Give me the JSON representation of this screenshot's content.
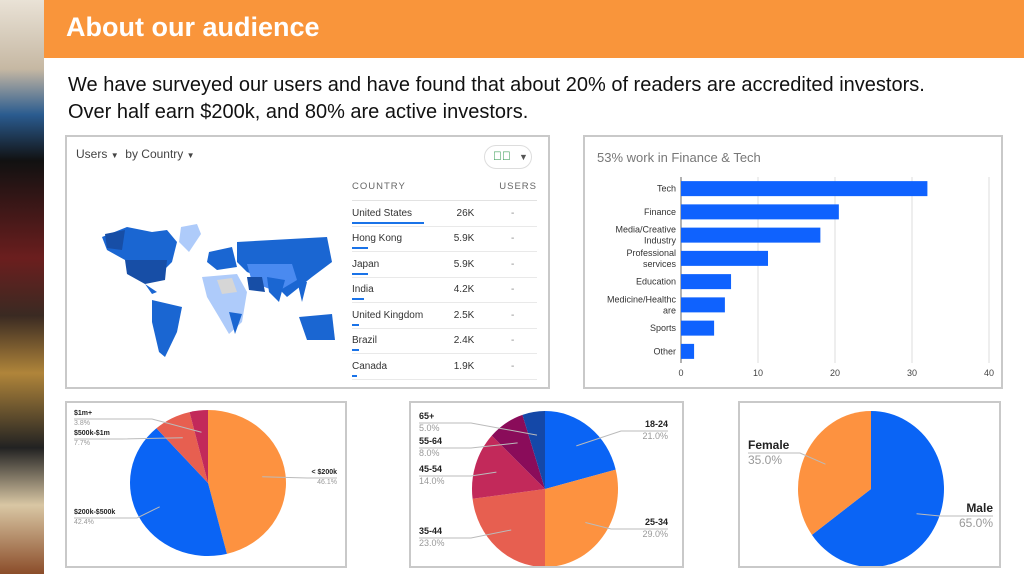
{
  "header": {
    "title": "About our audience"
  },
  "intro": {
    "line1": "We have surveyed our users and have found that about 20% of readers are accredited investors.",
    "line2": "Over half earn $200k, and 80% are active investors."
  },
  "analytics": {
    "metric_label": "Users",
    "dimension_label": "by Country",
    "check_icon": "check-circle-icon",
    "columns": [
      "COUNTRY",
      "USERS"
    ],
    "rows": [
      {
        "country": "United States",
        "users": "26K",
        "change": "-",
        "share": 26
      },
      {
        "country": "Hong Kong",
        "users": "5.9K",
        "change": "-",
        "share": 5.9
      },
      {
        "country": "Japan",
        "users": "5.9K",
        "change": "-",
        "share": 5.9
      },
      {
        "country": "India",
        "users": "4.2K",
        "change": "-",
        "share": 4.2
      },
      {
        "country": "United Kingdom",
        "users": "2.5K",
        "change": "-",
        "share": 2.5
      },
      {
        "country": "Brazil",
        "users": "2.4K",
        "change": "-",
        "share": 2.4
      },
      {
        "country": "Canada",
        "users": "1.9K",
        "change": "-",
        "share": 1.9
      }
    ]
  },
  "chart_data": [
    {
      "type": "bar",
      "orientation": "horizontal",
      "title": "53% work in Finance & Tech",
      "categories": [
        "Tech",
        "Finance",
        "Media/Creative Industry",
        "Professional services",
        "Education",
        "Medicine/Healthcare",
        "Sports",
        "Other"
      ],
      "category_lines": [
        [
          "Tech"
        ],
        [
          "Finance"
        ],
        [
          "Media/Creative",
          "Industry"
        ],
        [
          "Professional",
          "services"
        ],
        [
          "Education"
        ],
        [
          "Medicine/Healthc",
          "are"
        ],
        [
          "Sports"
        ],
        [
          "Other"
        ]
      ],
      "values": [
        32,
        20.5,
        18.1,
        11.3,
        6.5,
        5.7,
        4.3,
        1.7
      ],
      "xlim": [
        0,
        40
      ],
      "xticks": [
        0,
        10,
        20,
        30,
        40
      ],
      "grid": true,
      "color": "#0f62fe"
    },
    {
      "type": "pie",
      "slices": [
        {
          "label": "< $200k",
          "value": 46.1,
          "pct": "46.1%",
          "color": "#fd9240"
        },
        {
          "label": "$200k-$500k",
          "value": 42.4,
          "pct": "42.4%",
          "color": "#0a64f5"
        },
        {
          "label": "$500k-$1m",
          "value": 7.7,
          "pct": "7.7%",
          "color": "#e75f50"
        },
        {
          "label": "$1m+",
          "value": 3.8,
          "pct": "3.8%",
          "color": "#c2295a"
        }
      ]
    },
    {
      "type": "pie",
      "slices": [
        {
          "label": "18-24",
          "value": 21,
          "pct": "21.0%",
          "color": "#0a64f5"
        },
        {
          "label": "25-34",
          "value": 29,
          "pct": "29.0%",
          "color": "#fd9240"
        },
        {
          "label": "35-44",
          "value": 23,
          "pct": "23.0%",
          "color": "#e75f50"
        },
        {
          "label": "45-54",
          "value": 14,
          "pct": "14.0%",
          "color": "#c2295a"
        },
        {
          "label": "55-64",
          "value": 8,
          "pct": "8.0%",
          "color": "#8a0c5a"
        },
        {
          "label": "65+",
          "value": 5,
          "pct": "5.0%",
          "color": "#1448a8"
        }
      ]
    },
    {
      "type": "pie",
      "slices": [
        {
          "label": "Male",
          "value": 65,
          "pct": "65.0%",
          "color": "#0a64f5"
        },
        {
          "label": "Female",
          "value": 35,
          "pct": "35.0%",
          "color": "#fd9240"
        }
      ]
    }
  ]
}
